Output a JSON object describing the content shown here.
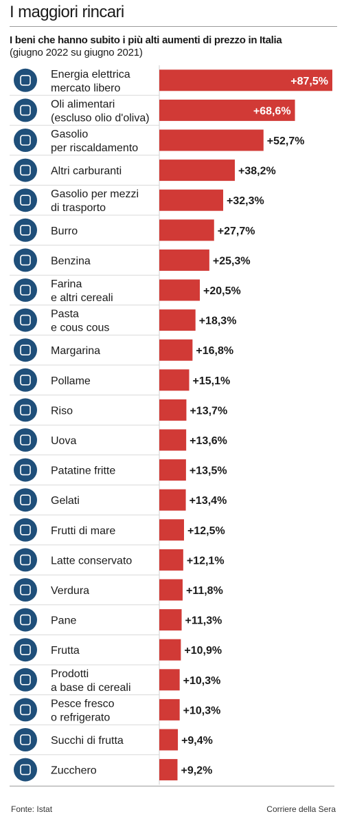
{
  "header": {
    "title": "I maggiori rincari",
    "subtitle": "I beni che hanno subito i più alti aumenti di prezzo in Italia",
    "period": "(giugno 2022 su giugno 2021)"
  },
  "footer": {
    "source": "Fonte: Istat",
    "credit": "Corriere della Sera"
  },
  "colors": {
    "bar": "#d13a36",
    "icon": "#1f4f7a",
    "label": "#1a1a1a"
  },
  "chart_data": {
    "type": "bar",
    "orientation": "horizontal",
    "value_suffix": "%",
    "categories": [
      {
        "lines": [
          "Energia elettrica",
          "mercato libero"
        ],
        "icon": "power-pylon-icon"
      },
      {
        "lines": [
          "Oli alimentari",
          "(escluso olio d'oliva)"
        ],
        "icon": "oil-bottle-icon"
      },
      {
        "lines": [
          "Gasolio",
          "per riscaldamento"
        ],
        "icon": "house-icon"
      },
      {
        "lines": [
          "Altri carburanti"
        ],
        "icon": "fuel-barrel-icon"
      },
      {
        "lines": [
          "Gasolio per mezzi",
          "di trasporto"
        ],
        "icon": "truck-icon"
      },
      {
        "lines": [
          "Burro"
        ],
        "icon": "butter-icon"
      },
      {
        "lines": [
          "Benzina"
        ],
        "icon": "fuel-pump-icon"
      },
      {
        "lines": [
          "Farina",
          "e altri cereali"
        ],
        "icon": "wheat-icon"
      },
      {
        "lines": [
          "Pasta",
          "e cous cous"
        ],
        "icon": "pasta-icon"
      },
      {
        "lines": [
          "Margarina"
        ],
        "icon": "margarine-icon"
      },
      {
        "lines": [
          "Pollame"
        ],
        "icon": "chicken-icon"
      },
      {
        "lines": [
          "Riso"
        ],
        "icon": "rice-bowl-icon"
      },
      {
        "lines": [
          "Uova"
        ],
        "icon": "eggs-icon"
      },
      {
        "lines": [
          "Patatine fritte"
        ],
        "icon": "fries-icon"
      },
      {
        "lines": [
          "Gelati"
        ],
        "icon": "ice-cream-icon"
      },
      {
        "lines": [
          "Frutti di mare"
        ],
        "icon": "shell-icon"
      },
      {
        "lines": [
          "Latte conservato"
        ],
        "icon": "milk-carton-icon"
      },
      {
        "lines": [
          "Verdura"
        ],
        "icon": "vegetables-icon"
      },
      {
        "lines": [
          "Pane"
        ],
        "icon": "bread-icon"
      },
      {
        "lines": [
          "Frutta"
        ],
        "icon": "fruit-icon"
      },
      {
        "lines": [
          "Prodotti",
          "a base di cereali"
        ],
        "icon": "grain-icon"
      },
      {
        "lines": [
          "Pesce fresco",
          "o refrigerato"
        ],
        "icon": "fish-icon"
      },
      {
        "lines": [
          "Succhi di frutta"
        ],
        "icon": "juice-icon"
      },
      {
        "lines": [
          "Zucchero"
        ],
        "icon": "sugar-icon"
      }
    ],
    "values": [
      87.5,
      68.6,
      52.7,
      38.2,
      32.3,
      27.7,
      25.3,
      20.5,
      18.3,
      16.8,
      15.1,
      13.7,
      13.6,
      13.5,
      13.4,
      12.5,
      12.1,
      11.8,
      11.3,
      10.9,
      10.3,
      10.3,
      9.4,
      9.2
    ],
    "labels": [
      "+87,5%",
      "+68,6%",
      "+52,7%",
      "+38,2%",
      "+32,3%",
      "+27,7%",
      "+25,3%",
      "+20,5%",
      "+18,3%",
      "+16,8%",
      "+15,1%",
      "+13,7%",
      "+13,6%",
      "+13,5%",
      "+13,4%",
      "+12,5%",
      "+12,1%",
      "+11,8%",
      "+11,3%",
      "+10,9%",
      "+10,3%",
      "+10,3%",
      "+9,4%",
      "+9,2%"
    ],
    "labels_inside": [
      true,
      true,
      false,
      false,
      false,
      false,
      false,
      false,
      false,
      false,
      false,
      false,
      false,
      false,
      false,
      false,
      false,
      false,
      false,
      false,
      false,
      false,
      false,
      false
    ]
  }
}
